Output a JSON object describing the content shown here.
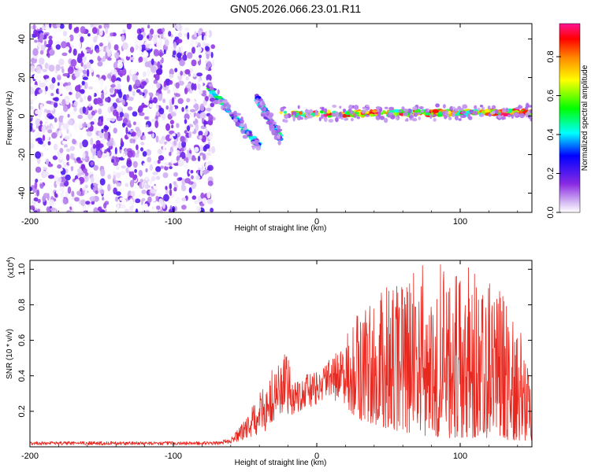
{
  "chart_data": [
    {
      "type": "heatmap",
      "title": "GN05.2026.066.23.01.R11",
      "xlabel": "Height of straight line (km)",
      "ylabel": "Frequency (Hz)",
      "xlim": [
        -200,
        150
      ],
      "ylim": [
        -50,
        48
      ],
      "x_ticks": [
        -200,
        -100,
        0,
        100
      ],
      "y_ticks": [
        -40,
        -20,
        0,
        20,
        40
      ],
      "colorbar": {
        "label": "Normalized spectral amplitude",
        "range": [
          0.0,
          0.97
        ],
        "ticks": [
          "0.0",
          "0.2",
          "0.4",
          "0.6",
          "0.8"
        ],
        "colors": [
          "#ffffff",
          "#c9a5f0",
          "#8a2be2",
          "#0000ff",
          "#00ffff",
          "#00ff00",
          "#ffff00",
          "#ff8800",
          "#ff0000",
          "#ff1493"
        ]
      },
      "regions": [
        {
          "name": "noise",
          "x": [
            -200,
            -72
          ],
          "freq": [
            -50,
            48
          ],
          "amplitude": [
            0.0,
            0.1
          ]
        },
        {
          "name": "descending branch",
          "x": [
            -75,
            -40
          ],
          "freq_start": 15,
          "freq_end": -16,
          "amplitude": [
            0.1,
            0.55
          ]
        },
        {
          "name": "crossing branch",
          "x": [
            -42,
            -25
          ],
          "freq_start": 10,
          "freq_end": -12,
          "amplitude": [
            0.1,
            0.5
          ]
        },
        {
          "name": "steady tone",
          "x": [
            -25,
            150
          ],
          "freq_start": 1,
          "freq_end": 2,
          "amplitude": [
            0.4,
            0.97
          ]
        }
      ]
    },
    {
      "type": "line",
      "xlabel": "Height of straight line (km)",
      "ylabel": "SNR (10 * v/v)",
      "y_multiplier": "(x10⁴)",
      "multiplier_base": "(x10",
      "multiplier_exp": "4",
      "multiplier_close": ")",
      "xlim": [
        -200,
        150
      ],
      "ylim": [
        0,
        1.05
      ],
      "x_ticks": [
        -200,
        -100,
        0,
        100
      ],
      "y_ticks": [
        "0.2",
        "0.4",
        "0.6",
        "0.8",
        "1.0"
      ],
      "series": [
        {
          "name": "SNR",
          "color": "#e8281f",
          "envelope": [
            {
              "x": -200,
              "base": 0.01,
              "peak": 0.03
            },
            {
              "x": -70,
              "base": 0.01,
              "peak": 0.03
            },
            {
              "x": -60,
              "base": 0.02,
              "peak": 0.05
            },
            {
              "x": -50,
              "base": 0.04,
              "peak": 0.15
            },
            {
              "x": -40,
              "base": 0.07,
              "peak": 0.3
            },
            {
              "x": -30,
              "base": 0.1,
              "peak": 0.45
            },
            {
              "x": -23,
              "base": 0.14,
              "peak": 0.55
            },
            {
              "x": -15,
              "base": 0.18,
              "peak": 0.4
            },
            {
              "x": 0,
              "base": 0.24,
              "peak": 0.42
            },
            {
              "x": 10,
              "base": 0.26,
              "peak": 0.5
            },
            {
              "x": 20,
              "base": 0.22,
              "peak": 0.62
            },
            {
              "x": 30,
              "base": 0.15,
              "peak": 0.78
            },
            {
              "x": 50,
              "base": 0.1,
              "peak": 0.92
            },
            {
              "x": 75,
              "base": 0.06,
              "peak": 1.05
            },
            {
              "x": 92,
              "base": 0.05,
              "peak": 1.05
            },
            {
              "x": 115,
              "base": 0.05,
              "peak": 1.0
            },
            {
              "x": 130,
              "base": 0.04,
              "peak": 0.85
            },
            {
              "x": 150,
              "base": 0.03,
              "peak": 0.6
            }
          ]
        }
      ]
    }
  ]
}
